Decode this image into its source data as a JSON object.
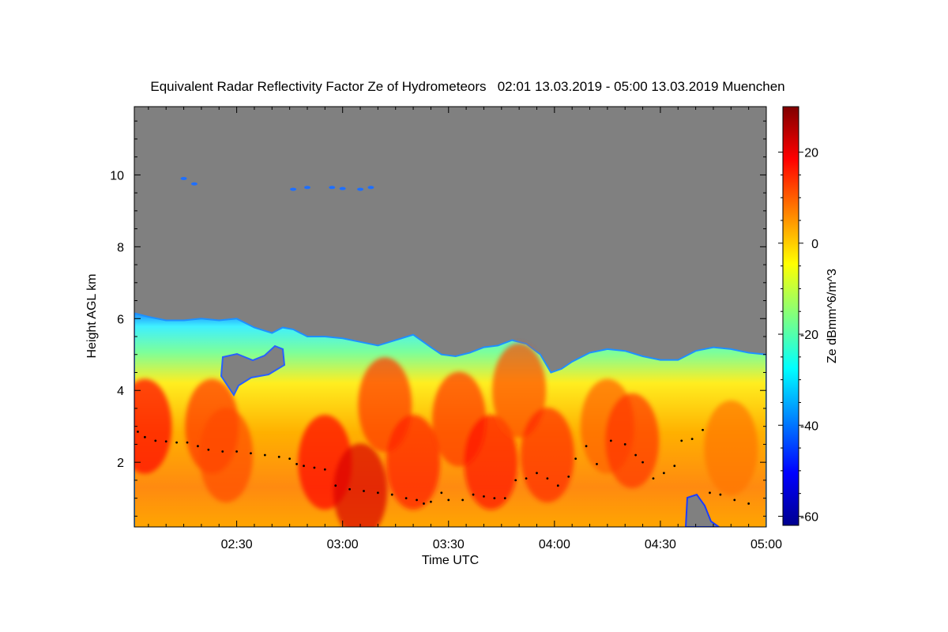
{
  "chart_data": {
    "type": "heatmap",
    "title": "Equivalent Radar Reflectivity Factor Ze of Hydrometeors   02:01 13.03.2019 - 05:00 13.03.2019 Muenchen",
    "xlabel": "Time UTC",
    "ylabel": "Height AGL km",
    "colorbar_label": "Ze dBmm^6/m^3",
    "x_range": [
      "02:01",
      "05:00"
    ],
    "xlim_minutes_utc": [
      121,
      300
    ],
    "ylim": [
      0.2,
      11.9
    ],
    "x_ticks": [
      {
        "minute": 150,
        "label": "02:30"
      },
      {
        "minute": 180,
        "label": "03:00"
      },
      {
        "minute": 210,
        "label": "03:30"
      },
      {
        "minute": 240,
        "label": "04:00"
      },
      {
        "minute": 270,
        "label": "04:30"
      },
      {
        "minute": 300,
        "label": "05:00"
      }
    ],
    "y_ticks": [
      {
        "value": 2,
        "label": "2"
      },
      {
        "value": 4,
        "label": "4"
      },
      {
        "value": 6,
        "label": "6"
      },
      {
        "value": 8,
        "label": "8"
      },
      {
        "value": 10,
        "label": "10"
      }
    ],
    "colorbar_range": [
      -62,
      30
    ],
    "colorbar_ticks": [
      {
        "value": 20,
        "label": "20"
      },
      {
        "value": 0,
        "label": "0"
      },
      {
        "value": -20,
        "label": "-20"
      },
      {
        "value": -40,
        "label": "-40"
      },
      {
        "value": -60,
        "label": "-60"
      }
    ],
    "no_signal_color": "#808080",
    "colormap": "jet",
    "cloud_top_km": [
      [
        121,
        6.15
      ],
      [
        125,
        6.05
      ],
      [
        130,
        5.95
      ],
      [
        135,
        5.95
      ],
      [
        140,
        6.0
      ],
      [
        145,
        5.95
      ],
      [
        150,
        6.0
      ],
      [
        155,
        5.75
      ],
      [
        160,
        5.6
      ],
      [
        163,
        5.75
      ],
      [
        166,
        5.7
      ],
      [
        170,
        5.5
      ],
      [
        175,
        5.5
      ],
      [
        180,
        5.45
      ],
      [
        185,
        5.35
      ],
      [
        190,
        5.25
      ],
      [
        195,
        5.4
      ],
      [
        200,
        5.55
      ],
      [
        205,
        5.2
      ],
      [
        208,
        5.0
      ],
      [
        212,
        4.95
      ],
      [
        216,
        5.05
      ],
      [
        220,
        5.2
      ],
      [
        224,
        5.25
      ],
      [
        228,
        5.4
      ],
      [
        232,
        5.3
      ],
      [
        236,
        5.0
      ],
      [
        239,
        4.5
      ],
      [
        242,
        4.6
      ],
      [
        245,
        4.8
      ],
      [
        250,
        5.05
      ],
      [
        255,
        5.15
      ],
      [
        260,
        5.1
      ],
      [
        265,
        4.95
      ],
      [
        270,
        4.85
      ],
      [
        275,
        4.85
      ],
      [
        280,
        5.1
      ],
      [
        285,
        5.2
      ],
      [
        290,
        5.15
      ],
      [
        295,
        5.05
      ],
      [
        300,
        5.0
      ]
    ],
    "high_cloud_echoes_km": [
      {
        "minute": 135,
        "height": 9.9
      },
      {
        "minute": 138,
        "height": 9.75
      },
      {
        "minute": 166,
        "height": 9.6
      },
      {
        "minute": 170,
        "height": 9.65
      },
      {
        "minute": 177,
        "height": 9.65
      },
      {
        "minute": 180,
        "height": 9.62
      },
      {
        "minute": 185,
        "height": 9.6
      },
      {
        "minute": 188,
        "height": 9.65
      }
    ],
    "reflectivity_cores_dBZ": [
      {
        "minute": 124,
        "height": 3.0,
        "ze": 18
      },
      {
        "minute": 143,
        "height": 3.0,
        "ze": 14
      },
      {
        "minute": 147,
        "height": 2.2,
        "ze": 12
      },
      {
        "minute": 175,
        "height": 2.0,
        "ze": 18
      },
      {
        "minute": 185,
        "height": 1.2,
        "ze": 22
      },
      {
        "minute": 192,
        "height": 3.6,
        "ze": 14
      },
      {
        "minute": 200,
        "height": 2.0,
        "ze": 16
      },
      {
        "minute": 213,
        "height": 3.2,
        "ze": 14
      },
      {
        "minute": 222,
        "height": 2.0,
        "ze": 17
      },
      {
        "minute": 230,
        "height": 4.0,
        "ze": 12
      },
      {
        "minute": 238,
        "height": 2.2,
        "ze": 15
      },
      {
        "minute": 255,
        "height": 3.0,
        "ze": 10
      },
      {
        "minute": 262,
        "height": 2.6,
        "ze": 14
      },
      {
        "minute": 290,
        "height": 2.4,
        "ze": 8
      }
    ],
    "bright_band_km": [
      [
        122,
        2.85
      ],
      [
        124,
        2.7
      ],
      [
        127,
        2.6
      ],
      [
        130,
        2.58
      ],
      [
        133,
        2.55
      ],
      [
        136,
        2.55
      ],
      [
        139,
        2.45
      ],
      [
        142,
        2.35
      ],
      [
        146,
        2.3
      ],
      [
        150,
        2.3
      ],
      [
        154,
        2.25
      ],
      [
        158,
        2.2
      ],
      [
        162,
        2.15
      ],
      [
        165,
        2.1
      ],
      [
        167,
        1.95
      ],
      [
        169,
        1.9
      ],
      [
        172,
        1.85
      ],
      [
        175,
        1.8
      ],
      [
        178,
        1.35
      ],
      [
        182,
        1.25
      ],
      [
        186,
        1.2
      ],
      [
        190,
        1.15
      ],
      [
        194,
        1.1
      ],
      [
        198,
        1.0
      ],
      [
        201,
        0.95
      ],
      [
        203,
        0.85
      ],
      [
        205,
        0.9
      ],
      [
        208,
        1.15
      ],
      [
        210,
        0.95
      ],
      [
        214,
        0.95
      ],
      [
        217,
        1.1
      ],
      [
        220,
        1.05
      ],
      [
        223,
        1.0
      ],
      [
        226,
        1.0
      ],
      [
        229,
        1.5
      ],
      [
        232,
        1.55
      ],
      [
        235,
        1.7
      ],
      [
        238,
        1.55
      ],
      [
        241,
        1.35
      ],
      [
        244,
        1.6
      ],
      [
        246,
        2.1
      ],
      [
        249,
        2.45
      ],
      [
        252,
        1.95
      ],
      [
        256,
        2.6
      ],
      [
        260,
        2.5
      ],
      [
        263,
        2.2
      ],
      [
        265,
        2.0
      ],
      [
        268,
        1.55
      ],
      [
        271,
        1.7
      ],
      [
        274,
        1.9
      ],
      [
        276,
        2.6
      ],
      [
        279,
        2.65
      ],
      [
        282,
        2.9
      ],
      [
        284,
        1.15
      ],
      [
        287,
        1.1
      ],
      [
        291,
        0.95
      ],
      [
        295,
        0.85
      ]
    ]
  }
}
